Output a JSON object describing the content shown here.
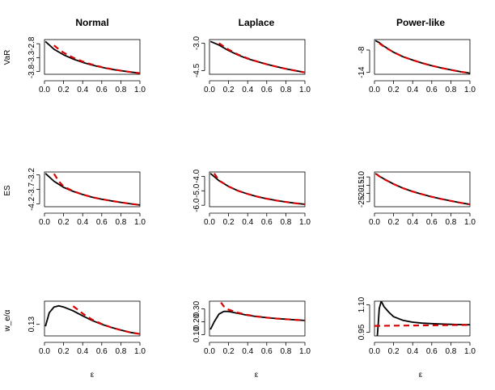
{
  "figure": {
    "col_titles": [
      "Normal",
      "Laplace",
      "Power-like"
    ],
    "row_labels": [
      "VaR",
      "ES",
      "w_e/α"
    ],
    "xlabel": "ε"
  },
  "styles": {
    "exact_color": "#000000",
    "approx_color": "#dd0000"
  },
  "chart_data": [
    {
      "id": "var-normal",
      "type": "line",
      "xlim": [
        0,
        1
      ],
      "ylim": [
        -3.9,
        -2.65
      ],
      "xticks": [
        "0.0",
        "0.2",
        "0.4",
        "0.6",
        "0.8",
        "1.0"
      ],
      "yticks": [
        "-2.8",
        "-3.3",
        "-3.8"
      ],
      "series": [
        {
          "style": "exact",
          "x": [
            0.01,
            0.1,
            0.2,
            0.3,
            0.4,
            0.5,
            0.6,
            0.7,
            0.8,
            0.9,
            1.0
          ],
          "y": [
            -2.72,
            -3.0,
            -3.2,
            -3.35,
            -3.47,
            -3.57,
            -3.65,
            -3.72,
            -3.77,
            -3.82,
            -3.86
          ]
        },
        {
          "style": "approx",
          "x": [
            0.1,
            0.15,
            0.2,
            0.3,
            0.4,
            0.5,
            0.6,
            0.7,
            0.8,
            0.9,
            1.0
          ],
          "y": [
            -2.86,
            -3.0,
            -3.12,
            -3.3,
            -3.44,
            -3.55,
            -3.64,
            -3.71,
            -3.77,
            -3.82,
            -3.86
          ]
        }
      ]
    },
    {
      "id": "var-laplace",
      "type": "line",
      "xlim": [
        0,
        1
      ],
      "ylim": [
        -4.7,
        -2.8
      ],
      "xticks": [
        "0.0",
        "0.2",
        "0.4",
        "0.6",
        "0.8",
        "1.0"
      ],
      "yticks": [
        "-3.0",
        "-4.5"
      ],
      "series": [
        {
          "style": "exact",
          "x": [
            0.01,
            0.1,
            0.2,
            0.3,
            0.4,
            0.5,
            0.6,
            0.7,
            0.8,
            0.9,
            1.0
          ],
          "y": [
            -2.9,
            -3.1,
            -3.4,
            -3.65,
            -3.85,
            -4.0,
            -4.15,
            -4.28,
            -4.4,
            -4.5,
            -4.6
          ]
        },
        {
          "style": "approx",
          "x": [
            0.1,
            0.15,
            0.2,
            0.3,
            0.4,
            0.5,
            0.6,
            0.7,
            0.8,
            0.9,
            1.0
          ],
          "y": [
            -3.0,
            -3.18,
            -3.35,
            -3.62,
            -3.83,
            -4.0,
            -4.15,
            -4.28,
            -4.4,
            -4.5,
            -4.6
          ]
        }
      ]
    },
    {
      "id": "var-power",
      "type": "line",
      "xlim": [
        0,
        1
      ],
      "ylim": [
        -14.5,
        -5.2
      ],
      "xticks": [
        "0.0",
        "0.2",
        "0.4",
        "0.6",
        "0.8",
        "1.0"
      ],
      "yticks": [
        "-8",
        "-14"
      ],
      "series": [
        {
          "style": "exact",
          "x": [
            0.01,
            0.05,
            0.1,
            0.2,
            0.3,
            0.4,
            0.5,
            0.6,
            0.7,
            0.8,
            0.9,
            1.0
          ],
          "y": [
            -5.5,
            -6.0,
            -7.0,
            -8.6,
            -9.8,
            -10.7,
            -11.5,
            -12.2,
            -12.8,
            -13.3,
            -13.8,
            -14.2
          ]
        },
        {
          "style": "approx",
          "x": [
            0.05,
            0.1,
            0.2,
            0.3,
            0.4,
            0.5,
            0.6,
            0.7,
            0.8,
            0.9,
            1.0
          ],
          "y": [
            -6.2,
            -7.1,
            -8.6,
            -9.8,
            -10.7,
            -11.5,
            -12.2,
            -12.8,
            -13.3,
            -13.8,
            -14.2
          ]
        }
      ]
    },
    {
      "id": "es-normal",
      "type": "line",
      "xlim": [
        0,
        1
      ],
      "ylim": [
        -4.3,
        -3.1
      ],
      "xticks": [
        "0.0",
        "0.2",
        "0.4",
        "0.6",
        "0.8",
        "1.0"
      ],
      "yticks": [
        "-3.2",
        "-3.7",
        "-4.2"
      ],
      "series": [
        {
          "style": "exact",
          "x": [
            0.01,
            0.1,
            0.2,
            0.3,
            0.4,
            0.5,
            0.6,
            0.7,
            0.8,
            0.9,
            1.0
          ],
          "y": [
            -3.15,
            -3.42,
            -3.63,
            -3.77,
            -3.88,
            -3.97,
            -4.04,
            -4.1,
            -4.15,
            -4.2,
            -4.24
          ]
        },
        {
          "style": "approx",
          "x": [
            0.1,
            0.15,
            0.2,
            0.3,
            0.4,
            0.5,
            0.6,
            0.7,
            0.8,
            0.9,
            1.0
          ],
          "y": [
            -3.16,
            -3.42,
            -3.6,
            -3.76,
            -3.88,
            -3.97,
            -4.04,
            -4.1,
            -4.15,
            -4.2,
            -4.24
          ]
        }
      ]
    },
    {
      "id": "es-laplace",
      "type": "line",
      "xlim": [
        0,
        1
      ],
      "ylim": [
        -6.1,
        -3.7
      ],
      "xticks": [
        "0.0",
        "0.2",
        "0.4",
        "0.6",
        "0.8",
        "1.0"
      ],
      "yticks": [
        "-4.0",
        "-5.0",
        "-6.0"
      ],
      "series": [
        {
          "style": "exact",
          "x": [
            0.01,
            0.1,
            0.2,
            0.3,
            0.4,
            0.5,
            0.6,
            0.7,
            0.8,
            0.9,
            1.0
          ],
          "y": [
            -3.8,
            -4.3,
            -4.7,
            -5.0,
            -5.22,
            -5.4,
            -5.55,
            -5.67,
            -5.77,
            -5.86,
            -5.93
          ]
        },
        {
          "style": "approx",
          "x": [
            0.05,
            0.1,
            0.2,
            0.3,
            0.4,
            0.5,
            0.6,
            0.7,
            0.8,
            0.9,
            1.0
          ],
          "y": [
            -3.8,
            -4.28,
            -4.7,
            -5.0,
            -5.22,
            -5.4,
            -5.55,
            -5.67,
            -5.77,
            -5.86,
            -5.93
          ]
        }
      ]
    },
    {
      "id": "es-power",
      "type": "line",
      "xlim": [
        0,
        1
      ],
      "ylim": [
        -28,
        -7
      ],
      "xticks": [
        "0.0",
        "0.2",
        "0.4",
        "0.6",
        "0.8",
        "1.0"
      ],
      "yticks": [
        "-10",
        "-15",
        "-20",
        "-25"
      ],
      "series": [
        {
          "style": "exact",
          "x": [
            0.01,
            0.05,
            0.1,
            0.2,
            0.3,
            0.4,
            0.5,
            0.6,
            0.7,
            0.8,
            0.9,
            1.0
          ],
          "y": [
            -8.0,
            -9.5,
            -11.2,
            -14.3,
            -16.8,
            -18.8,
            -20.5,
            -22.0,
            -23.3,
            -24.5,
            -25.6,
            -26.6
          ]
        },
        {
          "style": "approx",
          "x": [
            0.02,
            0.05,
            0.1,
            0.2,
            0.3,
            0.4,
            0.5,
            0.6,
            0.7,
            0.8,
            0.9,
            1.0
          ],
          "y": [
            -8.2,
            -9.6,
            -11.3,
            -14.3,
            -16.8,
            -18.8,
            -20.5,
            -22.0,
            -23.3,
            -24.5,
            -25.6,
            -26.6
          ]
        }
      ]
    },
    {
      "id": "w-normal",
      "type": "line",
      "xlim": [
        0,
        1
      ],
      "ylim": [
        0.1,
        0.19
      ],
      "xticks": [
        "0.0",
        "0.2",
        "0.4",
        "0.6",
        "0.8",
        "1.0"
      ],
      "yticks": [
        "0.13"
      ],
      "series": [
        {
          "style": "exact",
          "x": [
            0.01,
            0.05,
            0.1,
            0.15,
            0.2,
            0.3,
            0.4,
            0.5,
            0.6,
            0.7,
            0.8,
            0.9,
            1.0
          ],
          "y": [
            0.125,
            0.16,
            0.175,
            0.178,
            0.175,
            0.165,
            0.152,
            0.14,
            0.13,
            0.122,
            0.115,
            0.109,
            0.105
          ]
        },
        {
          "style": "approx",
          "x": [
            0.3,
            0.35,
            0.4,
            0.5,
            0.6,
            0.7,
            0.8,
            0.9,
            1.0
          ],
          "y": [
            0.177,
            0.168,
            0.158,
            0.142,
            0.131,
            0.122,
            0.115,
            0.109,
            0.105
          ]
        }
      ]
    },
    {
      "id": "w-laplace",
      "type": "line",
      "xlim": [
        0,
        1
      ],
      "ylim": [
        0.09,
        0.36
      ],
      "xticks": [
        "0.0",
        "0.2",
        "0.4",
        "0.6",
        "0.8",
        "1.0"
      ],
      "yticks": [
        "0.10",
        "0.20",
        "0.30"
      ],
      "series": [
        {
          "style": "exact",
          "x": [
            0.01,
            0.05,
            0.1,
            0.15,
            0.2,
            0.3,
            0.4,
            0.5,
            0.6,
            0.7,
            0.8,
            0.9,
            1.0
          ],
          "y": [
            0.14,
            0.2,
            0.26,
            0.28,
            0.28,
            0.265,
            0.25,
            0.24,
            0.232,
            0.225,
            0.22,
            0.215,
            0.21
          ]
        },
        {
          "style": "approx",
          "x": [
            0.12,
            0.15,
            0.2,
            0.3,
            0.4,
            0.5,
            0.6,
            0.7,
            0.8,
            0.9,
            1.0
          ],
          "y": [
            0.35,
            0.32,
            0.295,
            0.27,
            0.253,
            0.241,
            0.232,
            0.225,
            0.22,
            0.215,
            0.21
          ]
        }
      ]
    },
    {
      "id": "w-power",
      "type": "line",
      "xlim": [
        0,
        1
      ],
      "ylim": [
        0.93,
        1.12
      ],
      "xticks": [
        "0.0",
        "0.2",
        "0.4",
        "0.6",
        "0.8",
        "1.0"
      ],
      "yticks": [
        "0.95",
        "1.10"
      ],
      "series": [
        {
          "style": "exact",
          "x": [
            0.03,
            0.04,
            0.05,
            0.07,
            0.1,
            0.15,
            0.2,
            0.3,
            0.4,
            0.5,
            0.6,
            0.7,
            0.8,
            0.9,
            1.0
          ],
          "y": [
            0.93,
            1.0,
            1.08,
            1.12,
            1.09,
            1.06,
            1.035,
            1.015,
            1.005,
            1.0,
            0.997,
            0.995,
            0.993,
            0.992,
            0.991
          ]
        },
        {
          "style": "approx",
          "x": [
            0.0,
            0.2,
            0.4,
            0.6,
            0.8,
            1.0
          ],
          "y": [
            0.985,
            0.986,
            0.987,
            0.988,
            0.989,
            0.99
          ]
        }
      ]
    }
  ]
}
